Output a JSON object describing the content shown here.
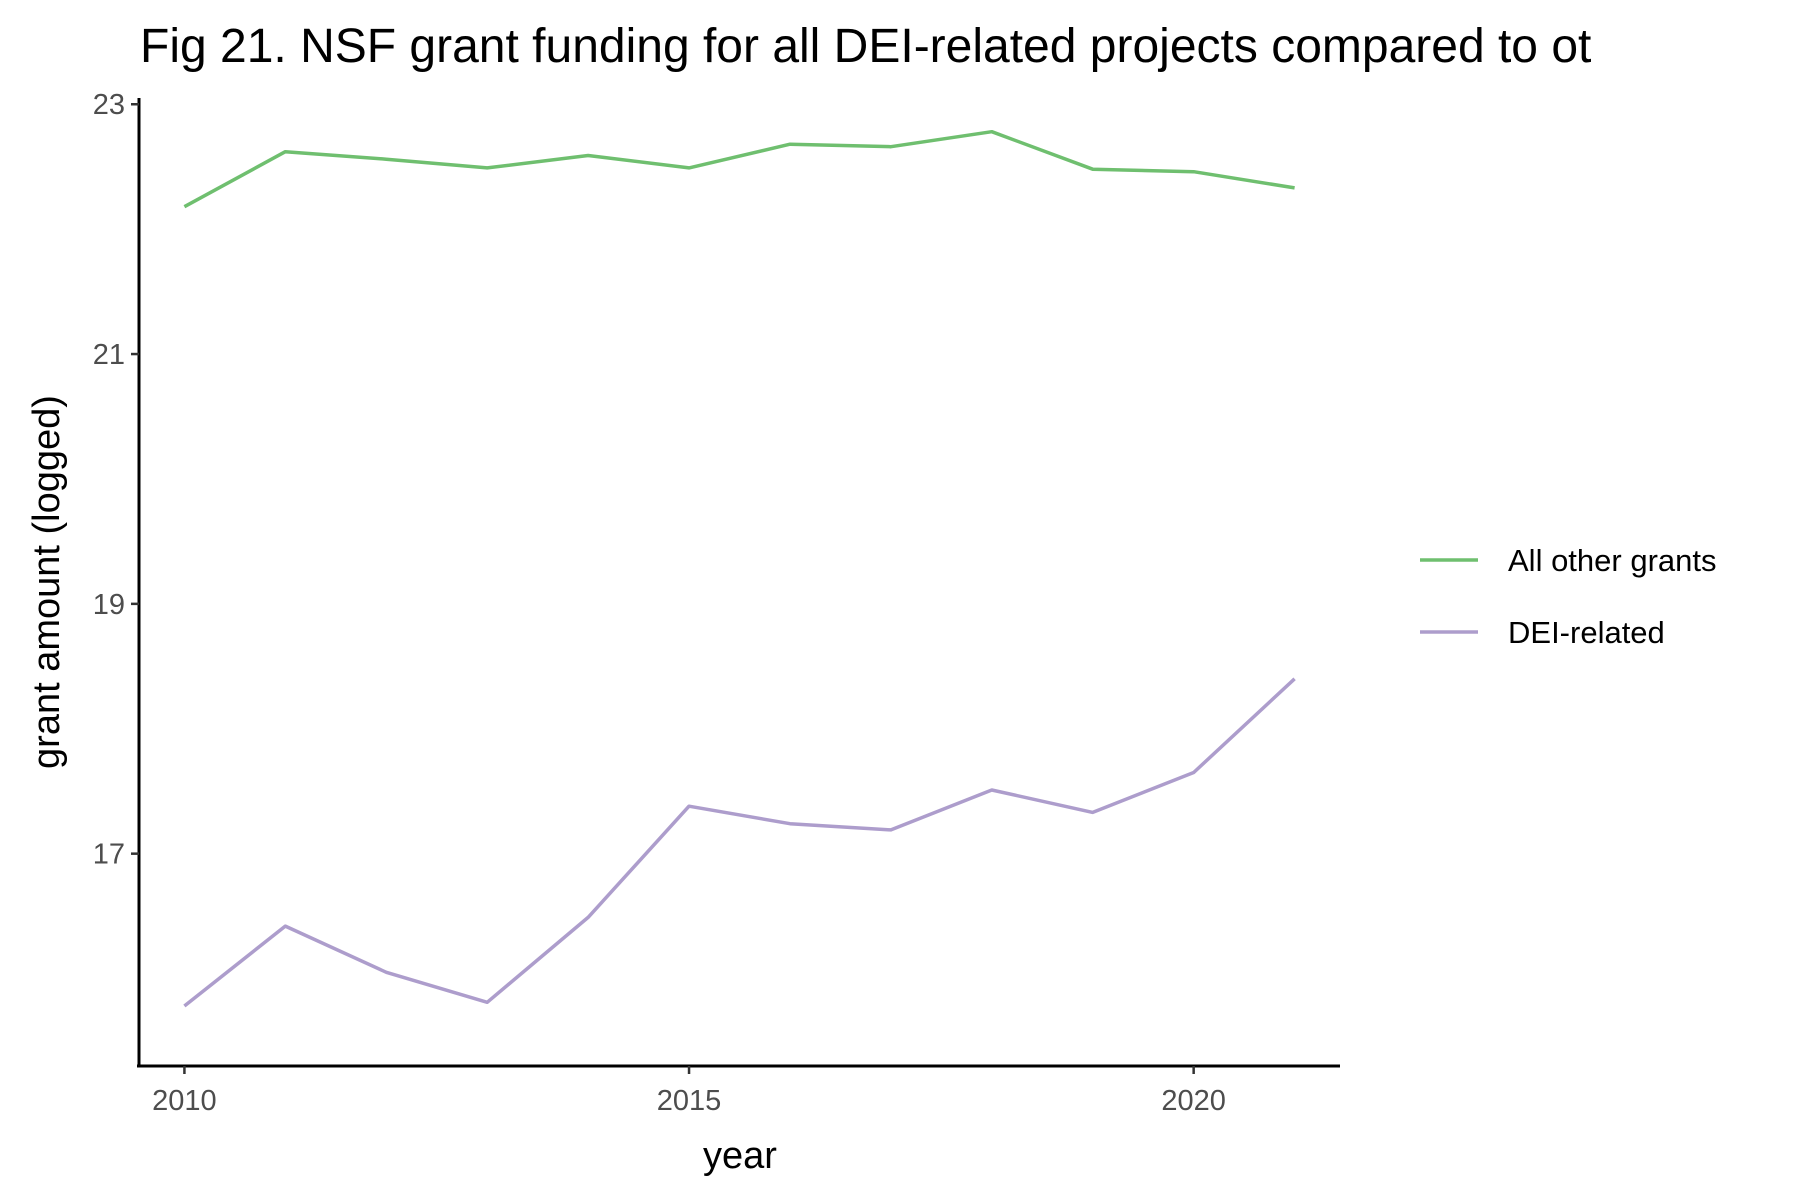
{
  "chart_data": {
    "type": "line",
    "title": "Fig 21. NSF grant funding for all DEI-related projects compared to ot",
    "xlabel": "year",
    "ylabel": "grant amount (logged)",
    "x": [
      2010,
      2011,
      2012,
      2013,
      2014,
      2015,
      2016,
      2017,
      2018,
      2019,
      2020,
      2021
    ],
    "xlim": [
      2009.55,
      2021.45
    ],
    "ylim": [
      15.3,
      23.05
    ],
    "x_ticks": [
      2010,
      2015,
      2020
    ],
    "y_ticks": [
      17,
      19,
      21,
      23
    ],
    "x_tick_labels": [
      "2010",
      "2015",
      "2020"
    ],
    "y_tick_labels": [
      "17",
      "19",
      "21",
      "23"
    ],
    "grid": false,
    "legend_position": "right",
    "series": [
      {
        "name": "All other grants",
        "color": "#6fbf6f",
        "values": [
          22.18,
          22.62,
          22.56,
          22.49,
          22.59,
          22.49,
          22.68,
          22.66,
          22.78,
          22.48,
          22.46,
          22.33
        ]
      },
      {
        "name": "DEI-related",
        "color": "#ad9dcc",
        "values": [
          15.78,
          16.42,
          16.05,
          15.81,
          16.49,
          17.38,
          17.24,
          17.19,
          17.51,
          17.33,
          17.65,
          18.4
        ]
      }
    ]
  }
}
